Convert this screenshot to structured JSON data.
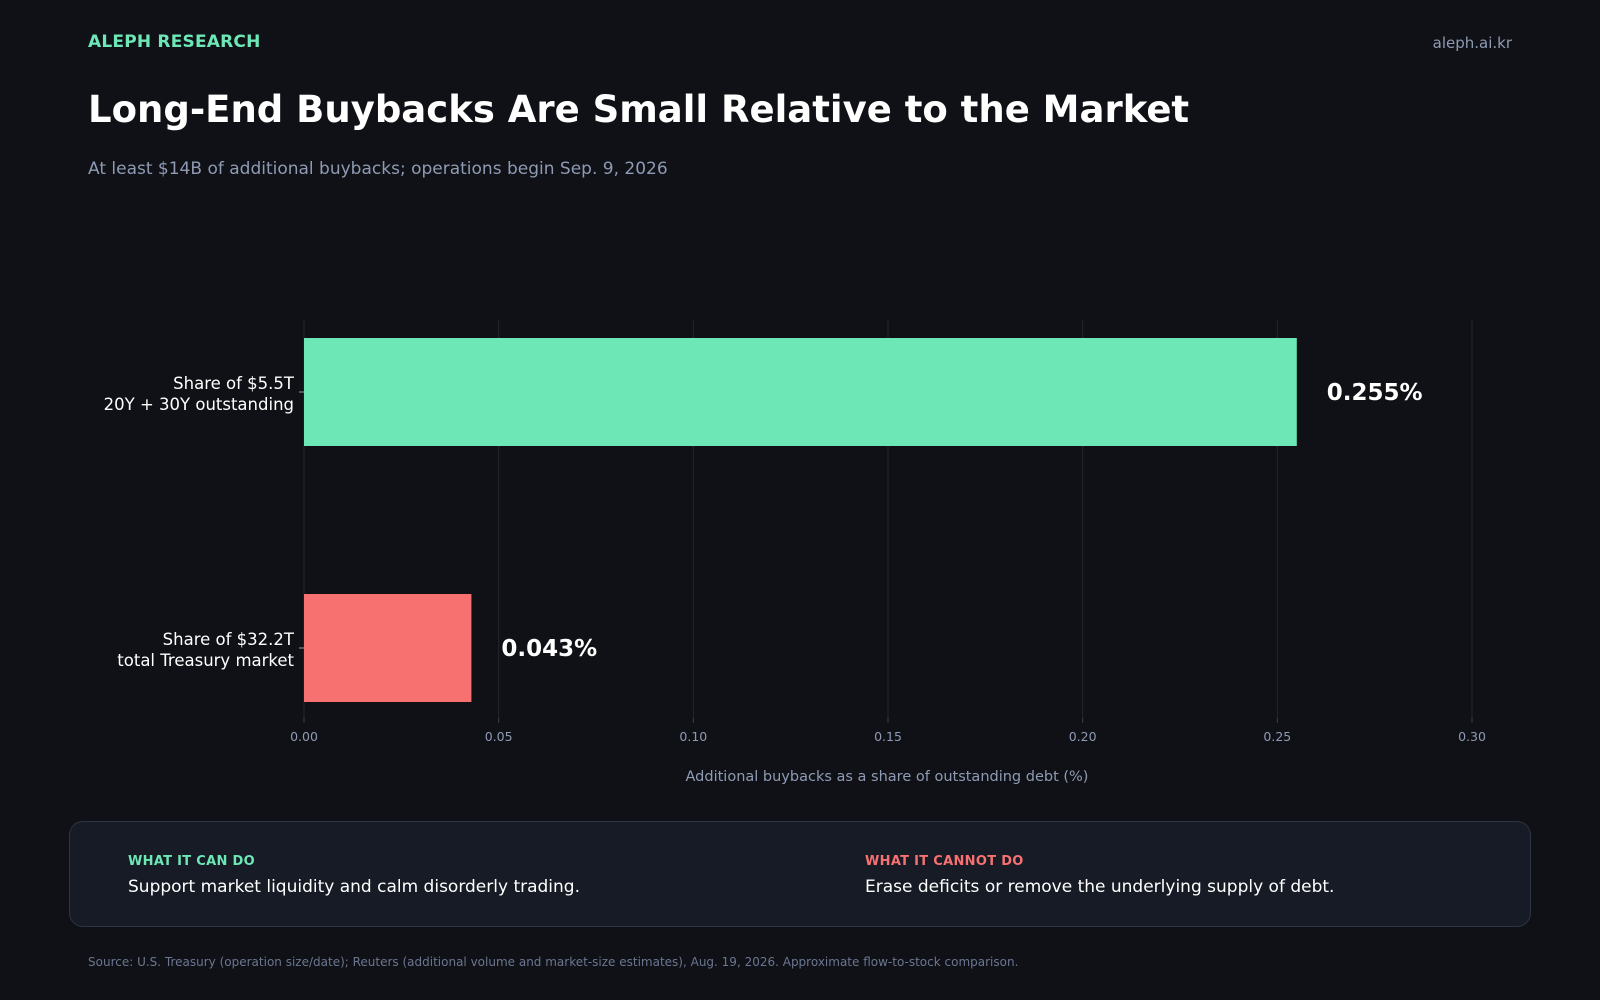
{
  "header": {
    "brand": "ALEPH RESEARCH",
    "site": "aleph.ai.kr",
    "title": "Long-End Buybacks Are Small Relative to the Market",
    "subtitle": "At least $14B of additional buybacks; operations begin Sep. 9, 2026"
  },
  "chart_data": {
    "type": "bar",
    "orientation": "horizontal",
    "categories": [
      [
        "Share of $5.5T",
        "20Y + 30Y outstanding"
      ],
      [
        "Share of $32.2T",
        "total Treasury market"
      ]
    ],
    "values": [
      0.255,
      0.043
    ],
    "data_labels": [
      "0.255%",
      "0.043%"
    ],
    "colors": [
      "#6ee7b7",
      "#f87171"
    ],
    "xlabel": "Additional buybacks as a share of outstanding debt (%)",
    "xlim": [
      0,
      0.3
    ],
    "xticks": [
      0.0,
      0.05,
      0.1,
      0.15,
      0.2,
      0.25,
      0.3
    ],
    "xtick_labels": [
      "0.00",
      "0.05",
      "0.10",
      "0.15",
      "0.20",
      "0.25",
      "0.30"
    ],
    "grid": "vertical",
    "legend": "none"
  },
  "panel": {
    "left_label": "WHAT IT CAN DO",
    "left_text": "Support market liquidity and calm disorderly trading.",
    "left_color": "#6ee7b7",
    "right_label": "WHAT IT CANNOT DO",
    "right_text": "Erase deficits or remove the underlying supply of debt.",
    "right_color": "#f87171"
  },
  "footer": {
    "source": "Source: U.S. Treasury (operation size/date); Reuters (additional volume and market-size estimates), Aug. 19, 2026. Approximate flow-to-stock comparison."
  }
}
